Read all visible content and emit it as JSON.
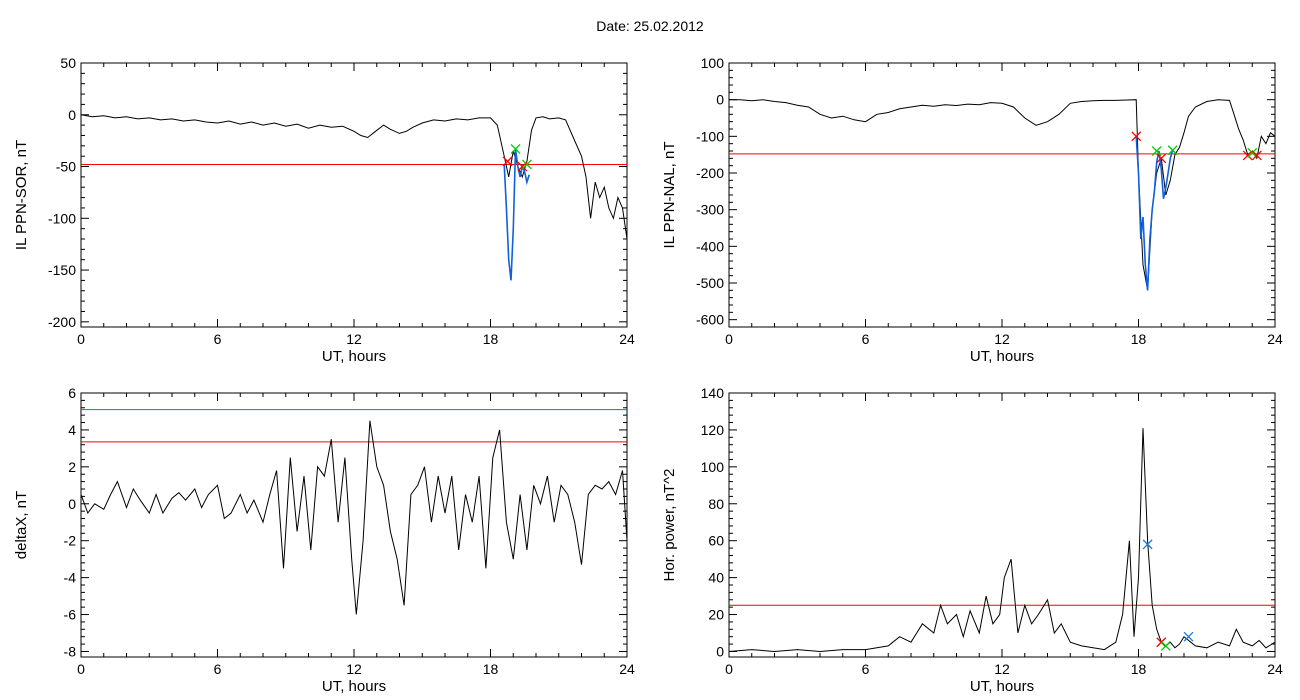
{
  "page_title": "Date:  25.02.2012",
  "colors": {
    "trace": "#000000",
    "threshold": "#ff0000",
    "highlight": "#1060e0",
    "marker_start": "#ff0000",
    "marker_end": "#00cc00",
    "marker_peak": "#1a7fd6",
    "teal_line": "#008b8b"
  },
  "chart_data": [
    {
      "type": "line",
      "id": "p1",
      "xlabel": "UT, hours",
      "ylabel": "IL PPN-SOR, nT",
      "xlim": [
        0,
        24
      ],
      "ylim": [
        -205,
        50
      ],
      "xticks": [
        0,
        6,
        12,
        18,
        24
      ],
      "yticks": [
        -200,
        -150,
        -100,
        -50,
        0,
        50
      ],
      "grid": false,
      "hlines": [
        {
          "y": -48,
          "color": "red"
        }
      ],
      "series": [
        {
          "style": "black",
          "x": [
            0,
            0.5,
            1,
            1.5,
            2,
            2.5,
            3,
            3.5,
            4,
            4.5,
            5,
            5.5,
            6,
            6.5,
            7,
            7.5,
            8,
            8.5,
            9,
            9.5,
            10,
            10.5,
            11,
            11.5,
            12,
            12.3,
            12.6,
            13,
            13.3,
            13.6,
            14,
            14.3,
            14.6,
            15,
            15.5,
            16,
            16.5,
            17,
            17.5,
            18,
            18.3,
            18.6,
            18.8,
            19,
            19.2,
            19.4,
            19.6,
            19.8,
            20,
            20.3,
            20.6,
            21,
            21.3,
            21.6,
            22,
            22.2,
            22.4,
            22.6,
            22.8,
            23,
            23.2,
            23.4,
            23.6,
            23.8,
            24
          ],
          "y": [
            0,
            -2,
            -1,
            -3,
            -2,
            -4,
            -3,
            -5,
            -4,
            -6,
            -5,
            -7,
            -8,
            -6,
            -9,
            -7,
            -10,
            -8,
            -11,
            -9,
            -13,
            -10,
            -12,
            -11,
            -16,
            -20,
            -22,
            -15,
            -10,
            -14,
            -18,
            -16,
            -12,
            -8,
            -5,
            -6,
            -4,
            -5,
            -3,
            -3,
            -10,
            -40,
            -60,
            -35,
            -50,
            -60,
            -45,
            -15,
            -3,
            -2,
            -4,
            -3,
            -5,
            -20,
            -40,
            -60,
            -100,
            -65,
            -80,
            -70,
            -90,
            -100,
            -80,
            -90,
            -120
          ]
        },
        {
          "style": "blue",
          "x": [
            18.6,
            18.7,
            18.8,
            18.9,
            19,
            19.1,
            19.2,
            19.3,
            19.4,
            19.5,
            19.6,
            19.7
          ],
          "y": [
            -48,
            -90,
            -140,
            -160,
            -110,
            -33,
            -50,
            -60,
            -50,
            -55,
            -65,
            -58
          ]
        }
      ],
      "markers": [
        {
          "x": 18.75,
          "y": -45,
          "color": "red"
        },
        {
          "x": 19.1,
          "y": -33,
          "color": "green"
        },
        {
          "x": 19.4,
          "y": -50,
          "color": "red"
        },
        {
          "x": 19.6,
          "y": -48,
          "color": "green"
        }
      ]
    },
    {
      "type": "line",
      "id": "p2",
      "xlabel": "UT, hours",
      "ylabel": "IL PPN-NAL, nT",
      "xlim": [
        0,
        24
      ],
      "ylim": [
        -620,
        100
      ],
      "xticks": [
        0,
        6,
        12,
        18,
        24
      ],
      "yticks": [
        -600,
        -500,
        -400,
        -300,
        -200,
        -100,
        0,
        100
      ],
      "grid": false,
      "hlines": [
        {
          "y": -148,
          "color": "red"
        }
      ],
      "series": [
        {
          "style": "black",
          "x": [
            0,
            0.5,
            1,
            1.5,
            2,
            2.5,
            3,
            3.5,
            4,
            4.5,
            5,
            5.5,
            6,
            6.5,
            7,
            7.5,
            8,
            8.5,
            9,
            9.5,
            10,
            10.5,
            11,
            11.5,
            12,
            12.5,
            13,
            13.5,
            14,
            14.5,
            15,
            15.5,
            16,
            16.5,
            17,
            17.5,
            17.9,
            18,
            18.2,
            18.4,
            18.6,
            18.8,
            19,
            19.2,
            19.4,
            19.6,
            19.8,
            20,
            20.2,
            20.5,
            21,
            21.5,
            22,
            22.2,
            22.4,
            22.6,
            22.8,
            23,
            23.2,
            23.4,
            23.6,
            23.8,
            24
          ],
          "y": [
            0,
            0,
            -3,
            0,
            -5,
            -8,
            -15,
            -20,
            -40,
            -50,
            -45,
            -55,
            -60,
            -40,
            -35,
            -25,
            -20,
            -15,
            -18,
            -14,
            -16,
            -12,
            -14,
            -8,
            -10,
            -20,
            -50,
            -70,
            -60,
            -40,
            -10,
            -5,
            -3,
            -2,
            -2,
            -1,
            0,
            -200,
            -450,
            -520,
            -300,
            -200,
            -160,
            -260,
            -220,
            -150,
            -130,
            -90,
            -45,
            -20,
            -5,
            0,
            -2,
            -40,
            -80,
            -110,
            -150,
            -140,
            -160,
            -100,
            -120,
            -90,
            -100
          ]
        },
        {
          "style": "blue",
          "x": [
            17.9,
            18,
            18.1,
            18.2,
            18.3,
            18.4,
            18.5,
            18.6,
            18.7,
            18.8,
            18.9,
            19,
            19.1,
            19.2,
            19.3,
            19.4,
            19.5
          ],
          "y": [
            -100,
            -200,
            -380,
            -320,
            -450,
            -520,
            -380,
            -300,
            -250,
            -170,
            -140,
            -190,
            -270,
            -240,
            -200,
            -160,
            -138
          ]
        }
      ],
      "markers": [
        {
          "x": 17.9,
          "y": -100,
          "color": "red"
        },
        {
          "x": 18.8,
          "y": -140,
          "color": "green"
        },
        {
          "x": 19.0,
          "y": -160,
          "color": "red"
        },
        {
          "x": 19.5,
          "y": -138,
          "color": "green"
        },
        {
          "x": 22.8,
          "y": -152,
          "color": "red"
        },
        {
          "x": 23.0,
          "y": -145,
          "color": "green"
        },
        {
          "x": 23.2,
          "y": -152,
          "color": "red"
        }
      ]
    },
    {
      "type": "line",
      "id": "p3",
      "xlabel": "UT, hours",
      "ylabel": "deltaX, nT",
      "xlim": [
        0,
        24
      ],
      "ylim": [
        -8.3,
        6
      ],
      "xticks": [
        0,
        6,
        12,
        18,
        24
      ],
      "yticks": [
        -8,
        -6,
        -4,
        -2,
        0,
        2,
        4,
        6
      ],
      "grid": false,
      "hlines": [
        {
          "y": 5.1,
          "color": "teal"
        },
        {
          "y": 3.35,
          "color": "red"
        }
      ],
      "series": [
        {
          "style": "black",
          "x": [
            0,
            0.3,
            0.6,
            1,
            1.3,
            1.6,
            2,
            2.3,
            2.6,
            3,
            3.3,
            3.6,
            4,
            4.3,
            4.6,
            5,
            5.3,
            5.6,
            6,
            6.3,
            6.6,
            7,
            7.3,
            7.6,
            8,
            8.3,
            8.6,
            8.9,
            9.2,
            9.5,
            9.8,
            10.1,
            10.4,
            10.7,
            11,
            11.3,
            11.6,
            11.9,
            12.1,
            12.4,
            12.7,
            13,
            13.3,
            13.6,
            13.9,
            14.2,
            14.5,
            14.8,
            15.1,
            15.4,
            15.7,
            16,
            16.3,
            16.6,
            16.9,
            17.2,
            17.5,
            17.8,
            18.1,
            18.4,
            18.7,
            19,
            19.3,
            19.6,
            19.9,
            20.2,
            20.5,
            20.8,
            21.1,
            21.4,
            21.7,
            22,
            22.3,
            22.6,
            22.9,
            23.2,
            23.5,
            23.8,
            24
          ],
          "y": [
            0.5,
            -0.5,
            0,
            -0.3,
            0.5,
            1.2,
            -0.2,
            0.8,
            0.2,
            -0.5,
            0.5,
            -0.5,
            0.3,
            0.6,
            0.2,
            0.8,
            -0.2,
            0.5,
            1,
            -0.8,
            -0.5,
            0.5,
            -0.5,
            0.2,
            -1,
            0.5,
            1.8,
            -3.5,
            2.5,
            -1.5,
            1.5,
            -2.5,
            2,
            1.5,
            3.5,
            -1,
            2.5,
            -3,
            -6,
            -2,
            4.5,
            2,
            1,
            -1.5,
            -3,
            -5.5,
            0.5,
            1,
            2,
            -1,
            1.5,
            -0.5,
            1.5,
            -2.5,
            0.5,
            -1,
            1.5,
            -3.5,
            2.5,
            4,
            -1,
            -3,
            0.5,
            -2.5,
            1,
            0,
            1.5,
            -1,
            1,
            0.5,
            -1,
            -3.3,
            0.5,
            1,
            0.8,
            1.2,
            0.5,
            1.8,
            -2
          ]
        }
      ],
      "markers": []
    },
    {
      "type": "line",
      "id": "p4",
      "xlabel": "UT, hours",
      "ylabel": "Hor. power, nT^2",
      "xlim": [
        0,
        24
      ],
      "ylim": [
        -3,
        140
      ],
      "xticks": [
        0,
        6,
        12,
        18,
        24
      ],
      "yticks": [
        0,
        20,
        40,
        60,
        80,
        100,
        120,
        140
      ],
      "grid": false,
      "hlines": [
        {
          "y": 25,
          "color": "red"
        }
      ],
      "series": [
        {
          "style": "black",
          "x": [
            0,
            1,
            2,
            3,
            4,
            5,
            6,
            6.5,
            7,
            7.5,
            8,
            8.5,
            9,
            9.3,
            9.6,
            10,
            10.3,
            10.6,
            11,
            11.3,
            11.6,
            11.9,
            12.1,
            12.4,
            12.7,
            13,
            13.3,
            13.6,
            14,
            14.3,
            14.6,
            15,
            15.5,
            16,
            16.5,
            17,
            17.3,
            17.6,
            17.8,
            18,
            18.2,
            18.4,
            18.6,
            18.8,
            19,
            19.2,
            19.4,
            19.6,
            19.8,
            20,
            20.5,
            21,
            21.5,
            22,
            22.3,
            22.6,
            23,
            23.3,
            23.6,
            24
          ],
          "y": [
            0,
            1,
            0,
            1,
            0,
            1,
            1,
            2,
            3,
            8,
            5,
            15,
            10,
            25,
            15,
            20,
            8,
            22,
            10,
            30,
            15,
            20,
            40,
            50,
            10,
            25,
            15,
            20,
            28,
            10,
            15,
            5,
            3,
            2,
            1,
            5,
            20,
            60,
            8,
            40,
            121,
            60,
            25,
            12,
            5,
            3,
            5,
            2,
            4,
            8,
            3,
            2,
            5,
            3,
            12,
            5,
            3,
            6,
            2,
            5
          ]
        }
      ],
      "markers": [
        {
          "x": 18.4,
          "y": 58,
          "color": "peak"
        },
        {
          "x": 19.0,
          "y": 5,
          "color": "red"
        },
        {
          "x": 19.2,
          "y": 3,
          "color": "green"
        },
        {
          "x": 20.2,
          "y": 8,
          "color": "peak"
        }
      ]
    }
  ]
}
